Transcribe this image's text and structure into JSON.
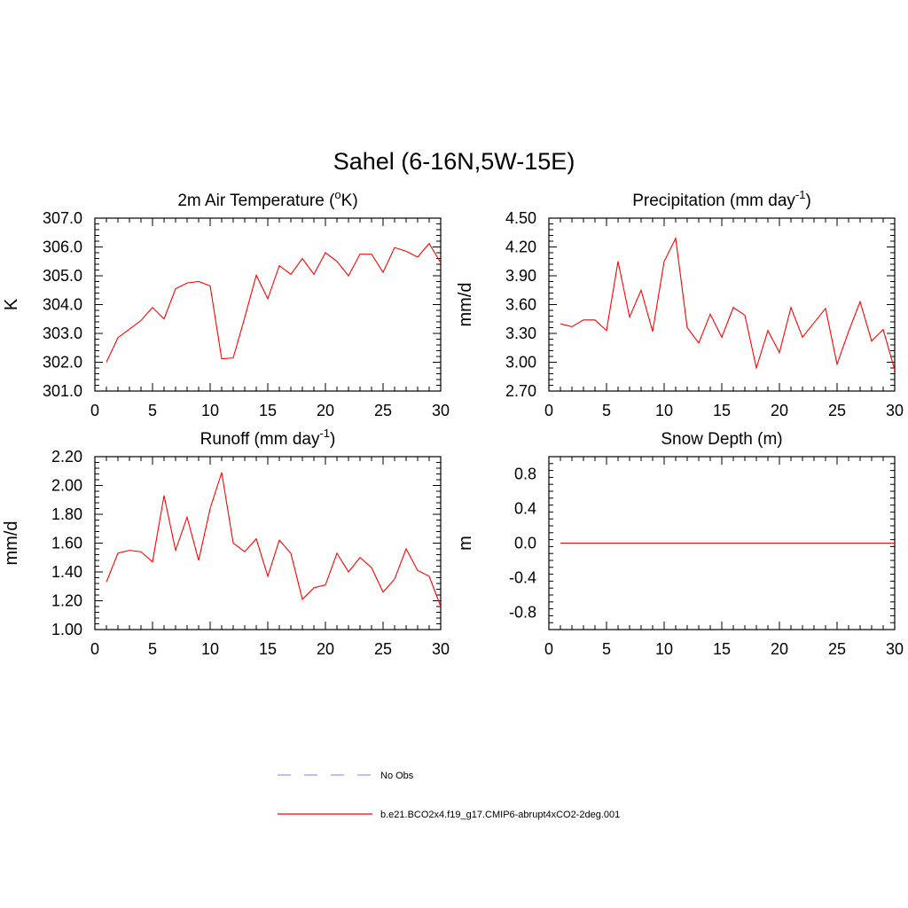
{
  "figure": {
    "title": "Sahel (6-16N,5W-15E)"
  },
  "legend": {
    "items": [
      {
        "label": "No Obs",
        "color": "#9999ff",
        "style": "dashed"
      },
      {
        "label": "b.e21.BCO2x4.f19_g17.CMIP6-abrupt4xCO2-2deg.001",
        "color": "#ff0000",
        "style": "solid"
      }
    ]
  },
  "chart_data": [
    {
      "type": "line",
      "title": {
        "main": "2m Air Temperature (",
        "sup1": "o",
        "rest": "K)",
        "sup2": "",
        "end": ""
      },
      "ylabel": "K",
      "xlim": [
        0,
        30
      ],
      "ylim": [
        301.0,
        307.0
      ],
      "xticks": [
        0,
        5,
        10,
        15,
        20,
        25,
        30
      ],
      "yticks": [
        301.0,
        302.0,
        303.0,
        304.0,
        305.0,
        306.0,
        307.0
      ],
      "ytick_labels": [
        "301.0",
        "302.0",
        "303.0",
        "304.0",
        "305.0",
        "306.0",
        "307.0"
      ],
      "line_color": "#ff0000",
      "series": [
        {
          "x": [
            1,
            2,
            3,
            4,
            5,
            6,
            7,
            8,
            9,
            10,
            11,
            12,
            13,
            14,
            15,
            16,
            17,
            18,
            19,
            20,
            21,
            22,
            23,
            24,
            25,
            26,
            27,
            28,
            29,
            30
          ],
          "values": [
            302.0,
            302.85,
            303.15,
            303.45,
            303.9,
            303.5,
            304.55,
            304.75,
            304.8,
            304.65,
            302.12,
            302.15,
            303.55,
            305.02,
            304.2,
            305.35,
            305.05,
            305.6,
            305.05,
            305.8,
            305.5,
            305.0,
            305.75,
            305.75,
            305.12,
            305.98,
            305.85,
            305.65,
            306.12,
            305.45
          ]
        }
      ]
    },
    {
      "type": "line",
      "title": {
        "main": "Precipitation (mm day",
        "sup1": "-1",
        "rest": ")",
        "sup2": "",
        "end": ""
      },
      "ylabel": "mm/d",
      "xlim": [
        0,
        30
      ],
      "ylim": [
        2.7,
        4.5
      ],
      "xticks": [
        0,
        5,
        10,
        15,
        20,
        25,
        30
      ],
      "yticks": [
        2.7,
        3.0,
        3.3,
        3.6,
        3.9,
        4.2,
        4.5
      ],
      "ytick_labels": [
        "2.70",
        "3.00",
        "3.30",
        "3.60",
        "3.90",
        "4.20",
        "4.50"
      ],
      "line_color": "#ff0000",
      "series": [
        {
          "x": [
            1,
            2,
            3,
            4,
            5,
            6,
            7,
            8,
            9,
            10,
            11,
            12,
            13,
            14,
            15,
            16,
            17,
            18,
            19,
            20,
            21,
            22,
            23,
            24,
            25,
            26,
            27,
            28,
            29,
            30
          ],
          "values": [
            3.4,
            3.37,
            3.44,
            3.44,
            3.33,
            4.05,
            3.47,
            3.75,
            3.32,
            4.05,
            4.29,
            3.36,
            3.2,
            3.5,
            3.26,
            3.57,
            3.49,
            2.94,
            3.33,
            3.1,
            3.57,
            3.26,
            3.41,
            3.56,
            2.98,
            3.32,
            3.63,
            3.22,
            3.34,
            2.92
          ]
        }
      ]
    },
    {
      "type": "line",
      "title": {
        "main": "Runoff (mm day",
        "sup1": "-1",
        "rest": ")",
        "sup2": "",
        "end": ""
      },
      "ylabel": "mm/d",
      "xlim": [
        0,
        30
      ],
      "ylim": [
        1.0,
        2.2
      ],
      "xticks": [
        0,
        5,
        10,
        15,
        20,
        25,
        30
      ],
      "yticks": [
        1.0,
        1.2,
        1.4,
        1.6,
        1.8,
        2.0,
        2.2
      ],
      "ytick_labels": [
        "1.00",
        "1.20",
        "1.40",
        "1.60",
        "1.80",
        "2.00",
        "2.20"
      ],
      "line_color": "#ff0000",
      "series": [
        {
          "x": [
            1,
            2,
            3,
            4,
            5,
            6,
            7,
            8,
            9,
            10,
            11,
            12,
            13,
            14,
            15,
            16,
            17,
            18,
            19,
            20,
            21,
            22,
            23,
            24,
            25,
            26,
            27,
            28,
            29,
            30
          ],
          "values": [
            1.33,
            1.53,
            1.55,
            1.54,
            1.47,
            1.93,
            1.55,
            1.78,
            1.48,
            1.84,
            2.09,
            1.6,
            1.54,
            1.63,
            1.37,
            1.62,
            1.53,
            1.21,
            1.29,
            1.31,
            1.53,
            1.4,
            1.5,
            1.43,
            1.26,
            1.35,
            1.56,
            1.41,
            1.37,
            1.16
          ]
        }
      ]
    },
    {
      "type": "line",
      "title": {
        "main": "Snow Depth (m)",
        "sup1": "",
        "rest": "",
        "sup2": "",
        "end": ""
      },
      "ylabel": "m",
      "xlim": [
        0,
        30
      ],
      "ylim": [
        -1.0,
        1.0
      ],
      "xticks": [
        0,
        5,
        10,
        15,
        20,
        25,
        30
      ],
      "yticks": [
        -0.8,
        -0.4,
        0.0,
        0.4,
        0.8
      ],
      "ytick_labels": [
        "-0.8",
        "-0.4",
        "0.0",
        "0.4",
        "0.8"
      ],
      "line_color": "#ff0000",
      "series": [
        {
          "x": [
            1,
            2,
            3,
            4,
            5,
            6,
            7,
            8,
            9,
            10,
            11,
            12,
            13,
            14,
            15,
            16,
            17,
            18,
            19,
            20,
            21,
            22,
            23,
            24,
            25,
            26,
            27,
            28,
            29,
            30
          ],
          "values": [
            0,
            0,
            0,
            0,
            0,
            0,
            0,
            0,
            0,
            0,
            0,
            0,
            0,
            0,
            0,
            0,
            0,
            0,
            0,
            0,
            0,
            0,
            0,
            0,
            0,
            0,
            0,
            0,
            0,
            0
          ]
        }
      ]
    }
  ]
}
